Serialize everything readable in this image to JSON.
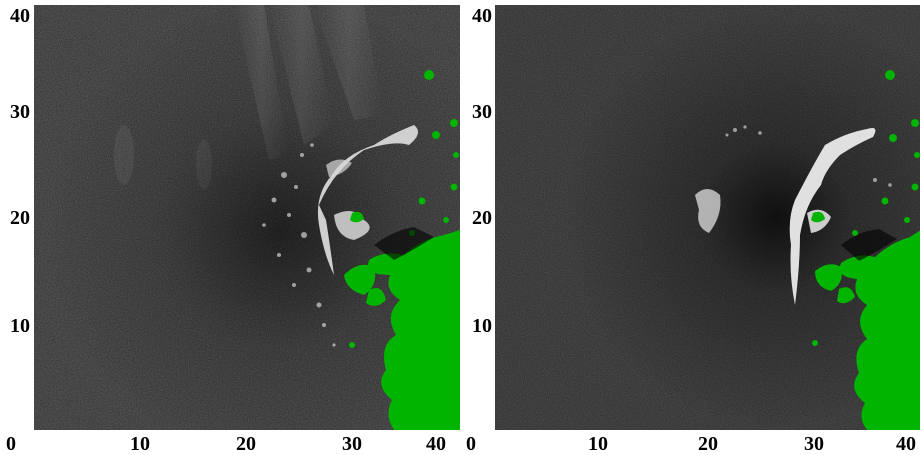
{
  "panels": [
    {
      "id": "left",
      "x_ticks": [
        "0",
        "10",
        "20",
        "30",
        "40"
      ],
      "y_ticks": [
        "10",
        "20",
        "30",
        "40"
      ],
      "colors": {
        "background": "#2a2a2a",
        "ice": "#d8d8d8",
        "land": "#00b400"
      }
    },
    {
      "id": "right",
      "x_ticks": [
        "0",
        "10",
        "20",
        "30",
        "40"
      ],
      "y_ticks": [
        "10",
        "20",
        "30",
        "40"
      ],
      "colors": {
        "background": "#262626",
        "ice": "#e0e0e0",
        "land": "#00b400"
      }
    }
  ]
}
